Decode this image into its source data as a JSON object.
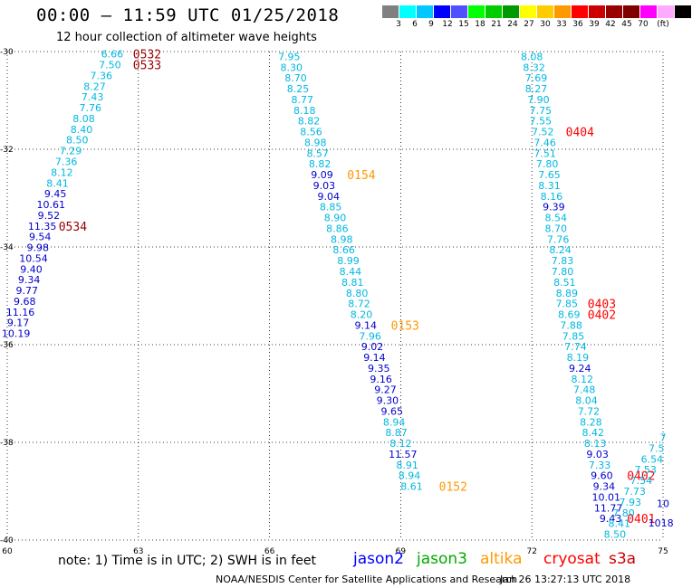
{
  "header": {
    "title": "00:00 – 11:59 UTC 01/25/2018",
    "subtitle": "12 hour collection of altimeter wave heights"
  },
  "colorscale": {
    "colors": [
      "#808080",
      "#00ffff",
      "#00c8ff",
      "#0000ff",
      "#5050ff",
      "#00ff00",
      "#00cc00",
      "#009900",
      "#ffff00",
      "#ffcc00",
      "#ff9900",
      "#ff0000",
      "#cc0000",
      "#990000",
      "#800000",
      "#ff00ff",
      "#ffaaff",
      "#000000"
    ],
    "labels": [
      "3",
      "6",
      "9",
      "12",
      "15",
      "18",
      "21",
      "24",
      "27",
      "30",
      "33",
      "36",
      "39",
      "42",
      "45",
      "70",
      "(ft)"
    ]
  },
  "footer": {
    "note": "note: 1) Time is in UTC; 2) SWH is in feet",
    "satellites": [
      {
        "name": "jason2",
        "color": "#0000ff"
      },
      {
        "name": "jason3",
        "color": "#00aa00"
      },
      {
        "name": "altika",
        "color": "#ff9900"
      },
      {
        "name": "cryosat",
        "color": "#ff0000"
      },
      {
        "name": "s3a",
        "color": "#cc0000"
      }
    ],
    "credit": "NOAA/NESDIS Center for Satellite Applications and Research",
    "timestamp": "Jan 26 13:27:13 UTC 2018"
  },
  "chart_data": {
    "type": "scatter",
    "xlim": [
      60,
      75
    ],
    "ylim": [
      -40,
      -30
    ],
    "xticks": [
      "60",
      "63",
      "66",
      "69",
      "72",
      "75"
    ],
    "yticks": [
      "-30",
      "-32",
      "-34",
      "-36",
      "-38",
      "-40"
    ],
    "grid": true,
    "tracks": [
      {
        "values": [
          {
            "v": "6.66",
            "x": 62.4,
            "y": -30.05,
            "c": "#00b8e0"
          },
          {
            "v": "7.50",
            "x": 62.35,
            "y": -30.27,
            "c": "#00b8e0"
          },
          {
            "v": "7.36",
            "x": 62.15,
            "y": -30.49,
            "c": "#00b8e0"
          },
          {
            "v": "8.27",
            "x": 62.0,
            "y": -30.71,
            "c": "#00b8e0"
          },
          {
            "v": "7.43",
            "x": 61.95,
            "y": -30.93,
            "c": "#00b8e0"
          },
          {
            "v": "7.76",
            "x": 61.9,
            "y": -31.15,
            "c": "#00b8e0"
          },
          {
            "v": "8.08",
            "x": 61.75,
            "y": -31.37,
            "c": "#00b8e0"
          },
          {
            "v": "8.40",
            "x": 61.7,
            "y": -31.59,
            "c": "#00b8e0"
          },
          {
            "v": "8.50",
            "x": 61.6,
            "y": -31.81,
            "c": "#00b8e0"
          },
          {
            "v": "7.29",
            "x": 61.45,
            "y": -32.03,
            "c": "#00b8e0"
          },
          {
            "v": "7.36",
            "x": 61.35,
            "y": -32.25,
            "c": "#00b8e0"
          },
          {
            "v": "8.12",
            "x": 61.25,
            "y": -32.47,
            "c": "#00b8e0"
          },
          {
            "v": "8.41",
            "x": 61.15,
            "y": -32.69,
            "c": "#00b8e0"
          },
          {
            "v": "9.45",
            "x": 61.1,
            "y": -32.91,
            "c": "#0000cc"
          },
          {
            "v": "10.61",
            "x": 61.0,
            "y": -33.13,
            "c": "#0000cc"
          },
          {
            "v": "9.52",
            "x": 60.95,
            "y": -33.35,
            "c": "#0000cc"
          },
          {
            "v": "11.35",
            "x": 60.8,
            "y": -33.57,
            "c": "#0000cc"
          },
          {
            "v": "9.54",
            "x": 60.75,
            "y": -33.79,
            "c": "#0000cc"
          },
          {
            "v": "9.98",
            "x": 60.7,
            "y": -34.01,
            "c": "#0000cc"
          },
          {
            "v": "10.54",
            "x": 60.6,
            "y": -34.23,
            "c": "#0000cc"
          },
          {
            "v": "9.40",
            "x": 60.55,
            "y": -34.45,
            "c": "#0000cc"
          },
          {
            "v": "9.34",
            "x": 60.5,
            "y": -34.67,
            "c": "#0000cc"
          },
          {
            "v": "9.77",
            "x": 60.45,
            "y": -34.89,
            "c": "#0000cc"
          },
          {
            "v": "9.68",
            "x": 60.4,
            "y": -35.11,
            "c": "#0000cc"
          },
          {
            "v": "11.16",
            "x": 60.3,
            "y": -35.33,
            "c": "#0000cc"
          },
          {
            "v": "9.17",
            "x": 60.25,
            "y": -35.55,
            "c": "#0000cc"
          },
          {
            "v": "10.19",
            "x": 60.2,
            "y": -35.77,
            "c": "#0000cc"
          }
        ],
        "labels": [
          {
            "t": "0532",
            "x": 63.2,
            "y": -30.05,
            "c": "#990000"
          },
          {
            "t": "0533",
            "x": 63.2,
            "y": -30.27,
            "c": "#990000"
          },
          {
            "t": "0534",
            "x": 61.5,
            "y": -33.57,
            "c": "#990000"
          }
        ]
      },
      {
        "values": [
          {
            "v": "7.95",
            "x": 66.45,
            "y": -30.1,
            "c": "#00b8e0"
          },
          {
            "v": "8.30",
            "x": 66.5,
            "y": -30.32,
            "c": "#00b8e0"
          },
          {
            "v": "8.70",
            "x": 66.6,
            "y": -30.54,
            "c": "#00b8e0"
          },
          {
            "v": "8.25",
            "x": 66.65,
            "y": -30.76,
            "c": "#00b8e0"
          },
          {
            "v": "8.77",
            "x": 66.75,
            "y": -30.98,
            "c": "#00b8e0"
          },
          {
            "v": "8.18",
            "x": 66.8,
            "y": -31.2,
            "c": "#00b8e0"
          },
          {
            "v": "8.82",
            "x": 66.9,
            "y": -31.42,
            "c": "#00b8e0"
          },
          {
            "v": "8.56",
            "x": 66.95,
            "y": -31.64,
            "c": "#00b8e0"
          },
          {
            "v": "8.98",
            "x": 67.05,
            "y": -31.86,
            "c": "#00b8e0"
          },
          {
            "v": "8.57",
            "x": 67.1,
            "y": -32.08,
            "c": "#00b8e0"
          },
          {
            "v": "8.82",
            "x": 67.15,
            "y": -32.3,
            "c": "#00b8e0"
          },
          {
            "v": "9.09",
            "x": 67.2,
            "y": -32.52,
            "c": "#0000cc"
          },
          {
            "v": "9.03",
            "x": 67.25,
            "y": -32.74,
            "c": "#0000cc"
          },
          {
            "v": "9.04",
            "x": 67.35,
            "y": -32.96,
            "c": "#0000cc"
          },
          {
            "v": "8.85",
            "x": 67.4,
            "y": -33.18,
            "c": "#00b8e0"
          },
          {
            "v": "8.90",
            "x": 67.5,
            "y": -33.4,
            "c": "#00b8e0"
          },
          {
            "v": "8.86",
            "x": 67.55,
            "y": -33.62,
            "c": "#00b8e0"
          },
          {
            "v": "8.98",
            "x": 67.65,
            "y": -33.84,
            "c": "#00b8e0"
          },
          {
            "v": "8.66",
            "x": 67.7,
            "y": -34.06,
            "c": "#00b8e0"
          },
          {
            "v": "8.99",
            "x": 67.8,
            "y": -34.28,
            "c": "#00b8e0"
          },
          {
            "v": "8.44",
            "x": 67.85,
            "y": -34.5,
            "c": "#00b8e0"
          },
          {
            "v": "8.81",
            "x": 67.9,
            "y": -34.72,
            "c": "#00b8e0"
          },
          {
            "v": "8.80",
            "x": 68.0,
            "y": -34.94,
            "c": "#00b8e0"
          },
          {
            "v": "8.72",
            "x": 68.05,
            "y": -35.16,
            "c": "#00b8e0"
          },
          {
            "v": "8.20",
            "x": 68.1,
            "y": -35.38,
            "c": "#00b8e0"
          },
          {
            "v": "9.14",
            "x": 68.2,
            "y": -35.6,
            "c": "#0000cc"
          },
          {
            "v": "7.96",
            "x": 68.3,
            "y": -35.82,
            "c": "#00b8e0"
          },
          {
            "v": "9.02",
            "x": 68.35,
            "y": -36.04,
            "c": "#0000cc"
          },
          {
            "v": "9.14",
            "x": 68.4,
            "y": -36.26,
            "c": "#0000cc"
          },
          {
            "v": "9.35",
            "x": 68.5,
            "y": -36.48,
            "c": "#0000cc"
          },
          {
            "v": "9.16",
            "x": 68.55,
            "y": -36.7,
            "c": "#0000cc"
          },
          {
            "v": "9.27",
            "x": 68.65,
            "y": -36.92,
            "c": "#0000cc"
          },
          {
            "v": "9.30",
            "x": 68.7,
            "y": -37.14,
            "c": "#0000cc"
          },
          {
            "v": "9.65",
            "x": 68.8,
            "y": -37.36,
            "c": "#0000cc"
          },
          {
            "v": "8.94",
            "x": 68.85,
            "y": -37.58,
            "c": "#00b8e0"
          },
          {
            "v": "8.87",
            "x": 68.9,
            "y": -37.8,
            "c": "#00b8e0"
          },
          {
            "v": "8.12",
            "x": 69.0,
            "y": -38.02,
            "c": "#00b8e0"
          },
          {
            "v": "11.57",
            "x": 69.05,
            "y": -38.24,
            "c": "#0000cc"
          },
          {
            "v": "8.91",
            "x": 69.15,
            "y": -38.46,
            "c": "#00b8e0"
          },
          {
            "v": "8.94",
            "x": 69.2,
            "y": -38.68,
            "c": "#00b8e0"
          },
          {
            "v": "8.61",
            "x": 69.25,
            "y": -38.9,
            "c": "#00b8e0"
          }
        ],
        "labels": [
          {
            "t": "0154",
            "x": 68.1,
            "y": -32.52,
            "c": "#ff9900"
          },
          {
            "t": "0153",
            "x": 69.1,
            "y": -35.6,
            "c": "#ff9900"
          },
          {
            "t": "0152",
            "x": 70.2,
            "y": -38.9,
            "c": "#ff9900"
          }
        ]
      },
      {
        "values": [
          {
            "v": "8.08",
            "x": 72.0,
            "y": -30.1,
            "c": "#00b8e0"
          },
          {
            "v": "8.32",
            "x": 72.05,
            "y": -30.32,
            "c": "#00b8e0"
          },
          {
            "v": "7.69",
            "x": 72.1,
            "y": -30.54,
            "c": "#00b8e0"
          },
          {
            "v": "8.27",
            "x": 72.1,
            "y": -30.76,
            "c": "#00b8e0"
          },
          {
            "v": "7.90",
            "x": 72.15,
            "y": -30.98,
            "c": "#00b8e0"
          },
          {
            "v": "7.75",
            "x": 72.2,
            "y": -31.2,
            "c": "#00b8e0"
          },
          {
            "v": "7.55",
            "x": 72.2,
            "y": -31.42,
            "c": "#00b8e0"
          },
          {
            "v": "7.52",
            "x": 72.25,
            "y": -31.64,
            "c": "#00b8e0"
          },
          {
            "v": "7.46",
            "x": 72.3,
            "y": -31.86,
            "c": "#00b8e0"
          },
          {
            "v": "7.51",
            "x": 72.3,
            "y": -32.08,
            "c": "#00b8e0"
          },
          {
            "v": "7.80",
            "x": 72.35,
            "y": -32.3,
            "c": "#00b8e0"
          },
          {
            "v": "7.65",
            "x": 72.4,
            "y": -32.52,
            "c": "#00b8e0"
          },
          {
            "v": "8.31",
            "x": 72.4,
            "y": -32.74,
            "c": "#00b8e0"
          },
          {
            "v": "8.16",
            "x": 72.45,
            "y": -32.96,
            "c": "#00b8e0"
          },
          {
            "v": "9.39",
            "x": 72.5,
            "y": -33.18,
            "c": "#0000cc"
          },
          {
            "v": "8.54",
            "x": 72.55,
            "y": -33.4,
            "c": "#00b8e0"
          },
          {
            "v": "8.70",
            "x": 72.55,
            "y": -33.62,
            "c": "#00b8e0"
          },
          {
            "v": "7.76",
            "x": 72.6,
            "y": -33.84,
            "c": "#00b8e0"
          },
          {
            "v": "8.24",
            "x": 72.65,
            "y": -34.06,
            "c": "#00b8e0"
          },
          {
            "v": "7.83",
            "x": 72.7,
            "y": -34.28,
            "c": "#00b8e0"
          },
          {
            "v": "7.80",
            "x": 72.7,
            "y": -34.5,
            "c": "#00b8e0"
          },
          {
            "v": "8.51",
            "x": 72.75,
            "y": -34.72,
            "c": "#00b8e0"
          },
          {
            "v": "8.89",
            "x": 72.8,
            "y": -34.94,
            "c": "#00b8e0"
          },
          {
            "v": "7.85",
            "x": 72.8,
            "y": -35.16,
            "c": "#00b8e0"
          },
          {
            "v": "8.69",
            "x": 72.85,
            "y": -35.38,
            "c": "#00b8e0"
          },
          {
            "v": "7.88",
            "x": 72.9,
            "y": -35.6,
            "c": "#00b8e0"
          },
          {
            "v": "7.85",
            "x": 72.95,
            "y": -35.82,
            "c": "#00b8e0"
          },
          {
            "v": "7.74",
            "x": 73.0,
            "y": -36.04,
            "c": "#00b8e0"
          },
          {
            "v": "8.19",
            "x": 73.05,
            "y": -36.26,
            "c": "#00b8e0"
          },
          {
            "v": "9.24",
            "x": 73.1,
            "y": -36.48,
            "c": "#0000cc"
          },
          {
            "v": "8.12",
            "x": 73.15,
            "y": -36.7,
            "c": "#00b8e0"
          },
          {
            "v": "7.48",
            "x": 73.2,
            "y": -36.92,
            "c": "#00b8e0"
          },
          {
            "v": "8.04",
            "x": 73.25,
            "y": -37.14,
            "c": "#00b8e0"
          },
          {
            "v": "7.72",
            "x": 73.3,
            "y": -37.36,
            "c": "#00b8e0"
          },
          {
            "v": "8.28",
            "x": 73.35,
            "y": -37.58,
            "c": "#00b8e0"
          },
          {
            "v": "8.42",
            "x": 73.4,
            "y": -37.8,
            "c": "#00b8e0"
          },
          {
            "v": "8.13",
            "x": 73.45,
            "y": -38.02,
            "c": "#00b8e0"
          },
          {
            "v": "9.03",
            "x": 73.5,
            "y": -38.24,
            "c": "#0000cc"
          },
          {
            "v": "7.33",
            "x": 73.55,
            "y": -38.46,
            "c": "#00b8e0"
          },
          {
            "v": "9.60",
            "x": 73.6,
            "y": -38.68,
            "c": "#0000cc"
          },
          {
            "v": "9.34",
            "x": 73.65,
            "y": -38.9,
            "c": "#0000cc"
          },
          {
            "v": "10.01",
            "x": 73.7,
            "y": -39.12,
            "c": "#0000cc"
          },
          {
            "v": "11.77",
            "x": 73.75,
            "y": -39.34,
            "c": "#0000cc"
          },
          {
            "v": "9.43",
            "x": 73.8,
            "y": -39.56,
            "c": "#0000cc"
          }
        ],
        "labels": [
          {
            "t": "0404",
            "x": 73.1,
            "y": -31.64,
            "c": "#ff0000"
          },
          {
            "t": "0403",
            "x": 73.6,
            "y": -35.16,
            "c": "#ff0000"
          },
          {
            "t": "0402",
            "x": 73.6,
            "y": -35.38,
            "c": "#ff0000"
          },
          {
            "t": "0402",
            "x": 74.5,
            "y": -38.68,
            "c": "#ff0000"
          },
          {
            "t": "0401",
            "x": 74.5,
            "y": -39.56,
            "c": "#ff0000"
          }
        ]
      },
      {
        "values": [
          {
            "v": "7",
            "x": 75.0,
            "y": -37.9,
            "c": "#00b8e0"
          },
          {
            "v": "7.5",
            "x": 74.85,
            "y": -38.12,
            "c": "#00b8e0"
          },
          {
            "v": "6.54",
            "x": 74.75,
            "y": -38.34,
            "c": "#00b8e0"
          },
          {
            "v": "7.53",
            "x": 74.6,
            "y": -38.56,
            "c": "#00b8e0"
          },
          {
            "v": "7.54",
            "x": 74.5,
            "y": -38.78,
            "c": "#00b8e0"
          },
          {
            "v": "7.73",
            "x": 74.35,
            "y": -39.0,
            "c": "#00b8e0"
          },
          {
            "v": "7.93",
            "x": 74.25,
            "y": -39.22,
            "c": "#00b8e0"
          },
          {
            "v": "7.80",
            "x": 74.1,
            "y": -39.44,
            "c": "#00b8e0"
          },
          {
            "v": "8.41",
            "x": 74.0,
            "y": -39.66,
            "c": "#00b8e0"
          },
          {
            "v": "8.50",
            "x": 73.9,
            "y": -39.88,
            "c": "#00b8e0"
          },
          {
            "v": "10",
            "x": 75.0,
            "y": -39.25,
            "c": "#0000cc"
          },
          {
            "v": "1018",
            "x": 74.95,
            "y": -39.65,
            "c": "#0000cc"
          }
        ],
        "labels": []
      }
    ]
  }
}
